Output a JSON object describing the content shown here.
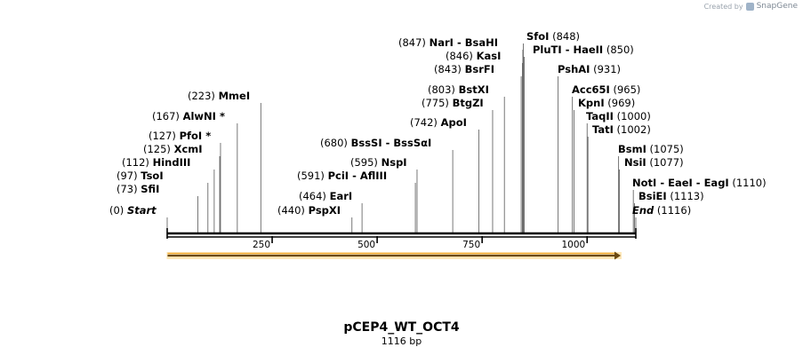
{
  "credit": {
    "prefix": "Created by",
    "brand": "SnapGene"
  },
  "title": "pCEP4_WT_OCT4",
  "length_label": "1116 bp",
  "map": {
    "length": 1116,
    "ticks": [
      250,
      500,
      750,
      1000
    ],
    "feature_arrow": {
      "start": 1,
      "end": 1080,
      "color": "#f0a830"
    },
    "sites": [
      {
        "pos_label": "(0)",
        "names": [
          "Start"
        ],
        "pos": 0,
        "italic": true
      },
      {
        "pos_label": "(73)",
        "names": [
          "SfiI"
        ],
        "pos": 73
      },
      {
        "pos_label": "(97)",
        "names": [
          "TsoI"
        ],
        "pos": 97
      },
      {
        "pos_label": "(112)",
        "names": [
          "HindIII"
        ],
        "pos": 112
      },
      {
        "pos_label": "(125)",
        "names": [
          "XcmI"
        ],
        "pos": 125
      },
      {
        "pos_label": "(127)",
        "names": [
          "PfoI *"
        ],
        "pos": 127
      },
      {
        "pos_label": "(167)",
        "names": [
          "AlwNI *"
        ],
        "pos": 167
      },
      {
        "pos_label": "(223)",
        "names": [
          "MmeI"
        ],
        "pos": 223
      },
      {
        "pos_label": "(440)",
        "names": [
          "PspXI"
        ],
        "pos": 440
      },
      {
        "pos_label": "(464)",
        "names": [
          "EarI"
        ],
        "pos": 464
      },
      {
        "pos_label": "(591)",
        "names": [
          "PciI",
          "AflIII"
        ],
        "pos": 591
      },
      {
        "pos_label": "(595)",
        "names": [
          "NspI"
        ],
        "pos": 595
      },
      {
        "pos_label": "(680)",
        "names": [
          "BssSI",
          "BssSαI"
        ],
        "pos": 680
      },
      {
        "pos_label": "(742)",
        "names": [
          "ApoI"
        ],
        "pos": 742
      },
      {
        "pos_label": "(775)",
        "names": [
          "BtgZI"
        ],
        "pos": 775
      },
      {
        "pos_label": "(803)",
        "names": [
          "BstXI"
        ],
        "pos": 803
      },
      {
        "pos_label": "(843)",
        "names": [
          "BsrFI"
        ],
        "pos": 843
      },
      {
        "pos_label": "(846)",
        "names": [
          "KasI"
        ],
        "pos": 846
      },
      {
        "pos_label": "(847)",
        "names": [
          "NarI",
          "BsaHI"
        ],
        "pos": 847
      },
      {
        "pos_label": "(848)",
        "names": [
          "SfoI"
        ],
        "pos": 848
      },
      {
        "pos_label": "(850)",
        "names": [
          "PluTI",
          "HaeII"
        ],
        "pos": 850
      },
      {
        "pos_label": "(931)",
        "names": [
          "PshAI"
        ],
        "pos": 931
      },
      {
        "pos_label": "(965)",
        "names": [
          "Acc65I"
        ],
        "pos": 965
      },
      {
        "pos_label": "(969)",
        "names": [
          "KpnI"
        ],
        "pos": 969
      },
      {
        "pos_label": "(1000)",
        "names": [
          "TaqII"
        ],
        "pos": 1000
      },
      {
        "pos_label": "(1002)",
        "names": [
          "TatI"
        ],
        "pos": 1002
      },
      {
        "pos_label": "(1075)",
        "names": [
          "BsmI"
        ],
        "pos": 1075
      },
      {
        "pos_label": "(1077)",
        "names": [
          "NsiI"
        ],
        "pos": 1077
      },
      {
        "pos_label": "(1110)",
        "names": [
          "NotI",
          "EaeI",
          "EagI"
        ],
        "pos": 1110
      },
      {
        "pos_label": "(1113)",
        "names": [
          "BsiEI"
        ],
        "pos": 1113
      },
      {
        "pos_label": "(1116)",
        "names": [
          "End"
        ],
        "pos": 1116,
        "italic": true
      }
    ]
  }
}
